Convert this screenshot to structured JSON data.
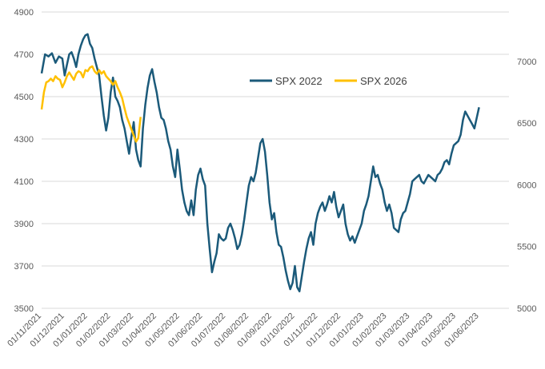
{
  "chart_data": {
    "type": "line",
    "title": "",
    "left_axis": {
      "ylim": [
        3500,
        4900
      ],
      "ticks": [
        3500,
        3700,
        3900,
        4100,
        4300,
        4500,
        4700,
        4900
      ]
    },
    "right_axis": {
      "ylim": [
        5000,
        7400
      ],
      "ticks": [
        5000,
        5500,
        6000,
        6500,
        7000
      ]
    },
    "x_axis": {
      "ticks": [
        "01/11/2021",
        "01/12/2021",
        "01/01/2022",
        "01/02/2022",
        "01/03/2022",
        "01/04/2022",
        "01/05/2022",
        "01/06/2022",
        "01/07/2022",
        "01/08/2022",
        "01/09/2022",
        "01/10/2022",
        "01/11/2022",
        "01/12/2022",
        "01/01/2023",
        "01/02/2023",
        "01/03/2023",
        "01/04/2023",
        "01/05/2023",
        "01/06/2023"
      ],
      "months_span": 20.3
    },
    "legend_position": "upper-center",
    "series": [
      {
        "name": "SPX 2022",
        "axis": "left",
        "color": "#1B5A7A",
        "points": [
          [
            0.0,
            4610
          ],
          [
            0.15,
            4700
          ],
          [
            0.3,
            4690
          ],
          [
            0.45,
            4705
          ],
          [
            0.6,
            4660
          ],
          [
            0.75,
            4690
          ],
          [
            0.9,
            4680
          ],
          [
            1.0,
            4600
          ],
          [
            1.1,
            4650
          ],
          [
            1.2,
            4700
          ],
          [
            1.3,
            4710
          ],
          [
            1.4,
            4680
          ],
          [
            1.5,
            4640
          ],
          [
            1.6,
            4700
          ],
          [
            1.7,
            4740
          ],
          [
            1.8,
            4770
          ],
          [
            1.9,
            4790
          ],
          [
            2.0,
            4795
          ],
          [
            2.1,
            4750
          ],
          [
            2.2,
            4730
          ],
          [
            2.3,
            4680
          ],
          [
            2.4,
            4640
          ],
          [
            2.5,
            4600
          ],
          [
            2.6,
            4500
          ],
          [
            2.7,
            4410
          ],
          [
            2.8,
            4340
          ],
          [
            2.9,
            4400
          ],
          [
            3.0,
            4520
          ],
          [
            3.1,
            4590
          ],
          [
            3.2,
            4500
          ],
          [
            3.3,
            4480
          ],
          [
            3.4,
            4450
          ],
          [
            3.5,
            4390
          ],
          [
            3.6,
            4350
          ],
          [
            3.7,
            4290
          ],
          [
            3.8,
            4230
          ],
          [
            3.9,
            4310
          ],
          [
            4.0,
            4380
          ],
          [
            4.1,
            4250
          ],
          [
            4.2,
            4200
          ],
          [
            4.3,
            4170
          ],
          [
            4.4,
            4350
          ],
          [
            4.5,
            4460
          ],
          [
            4.6,
            4540
          ],
          [
            4.7,
            4600
          ],
          [
            4.8,
            4630
          ],
          [
            4.9,
            4570
          ],
          [
            5.0,
            4520
          ],
          [
            5.1,
            4450
          ],
          [
            5.2,
            4400
          ],
          [
            5.3,
            4390
          ],
          [
            5.4,
            4350
          ],
          [
            5.5,
            4290
          ],
          [
            5.6,
            4250
          ],
          [
            5.7,
            4170
          ],
          [
            5.8,
            4120
          ],
          [
            5.9,
            4250
          ],
          [
            6.0,
            4160
          ],
          [
            6.1,
            4060
          ],
          [
            6.2,
            4000
          ],
          [
            6.3,
            3960
          ],
          [
            6.4,
            3940
          ],
          [
            6.5,
            4010
          ],
          [
            6.6,
            3940
          ],
          [
            6.7,
            4060
          ],
          [
            6.8,
            4130
          ],
          [
            6.9,
            4160
          ],
          [
            7.0,
            4110
          ],
          [
            7.1,
            4080
          ],
          [
            7.2,
            3900
          ],
          [
            7.3,
            3780
          ],
          [
            7.4,
            3670
          ],
          [
            7.5,
            3720
          ],
          [
            7.6,
            3760
          ],
          [
            7.7,
            3850
          ],
          [
            7.8,
            3830
          ],
          [
            7.9,
            3820
          ],
          [
            8.0,
            3830
          ],
          [
            8.1,
            3880
          ],
          [
            8.2,
            3900
          ],
          [
            8.3,
            3870
          ],
          [
            8.4,
            3830
          ],
          [
            8.5,
            3780
          ],
          [
            8.6,
            3800
          ],
          [
            8.7,
            3850
          ],
          [
            8.8,
            3920
          ],
          [
            8.9,
            4000
          ],
          [
            9.0,
            4080
          ],
          [
            9.1,
            4120
          ],
          [
            9.2,
            4100
          ],
          [
            9.3,
            4140
          ],
          [
            9.4,
            4210
          ],
          [
            9.5,
            4280
          ],
          [
            9.6,
            4300
          ],
          [
            9.7,
            4240
          ],
          [
            9.8,
            4130
          ],
          [
            9.9,
            4000
          ],
          [
            10.0,
            3920
          ],
          [
            10.1,
            3950
          ],
          [
            10.2,
            3860
          ],
          [
            10.3,
            3800
          ],
          [
            10.4,
            3790
          ],
          [
            10.5,
            3740
          ],
          [
            10.6,
            3680
          ],
          [
            10.7,
            3630
          ],
          [
            10.8,
            3590
          ],
          [
            10.9,
            3620
          ],
          [
            11.0,
            3700
          ],
          [
            11.1,
            3600
          ],
          [
            11.2,
            3580
          ],
          [
            11.3,
            3650
          ],
          [
            11.4,
            3720
          ],
          [
            11.5,
            3780
          ],
          [
            11.6,
            3830
          ],
          [
            11.7,
            3860
          ],
          [
            11.8,
            3800
          ],
          [
            11.9,
            3900
          ],
          [
            12.0,
            3950
          ],
          [
            12.1,
            3980
          ],
          [
            12.2,
            4000
          ],
          [
            12.3,
            3960
          ],
          [
            12.4,
            3990
          ],
          [
            12.5,
            4030
          ],
          [
            12.6,
            4000
          ],
          [
            12.7,
            4050
          ],
          [
            12.8,
            3980
          ],
          [
            12.9,
            3930
          ],
          [
            13.0,
            3960
          ],
          [
            13.1,
            3990
          ],
          [
            13.2,
            3900
          ],
          [
            13.3,
            3850
          ],
          [
            13.4,
            3820
          ],
          [
            13.5,
            3840
          ],
          [
            13.6,
            3810
          ],
          [
            13.7,
            3840
          ],
          [
            13.8,
            3870
          ],
          [
            13.9,
            3900
          ],
          [
            14.0,
            3960
          ],
          [
            14.1,
            3990
          ],
          [
            14.2,
            4030
          ],
          [
            14.3,
            4100
          ],
          [
            14.4,
            4170
          ],
          [
            14.5,
            4120
          ],
          [
            14.6,
            4130
          ],
          [
            14.7,
            4090
          ],
          [
            14.8,
            4060
          ],
          [
            14.9,
            4000
          ],
          [
            15.0,
            3960
          ],
          [
            15.1,
            3990
          ],
          [
            15.2,
            3950
          ],
          [
            15.3,
            3880
          ],
          [
            15.4,
            3870
          ],
          [
            15.5,
            3860
          ],
          [
            15.6,
            3920
          ],
          [
            15.7,
            3950
          ],
          [
            15.8,
            3960
          ],
          [
            15.9,
            4000
          ],
          [
            16.0,
            4040
          ],
          [
            16.1,
            4100
          ],
          [
            16.2,
            4110
          ],
          [
            16.3,
            4120
          ],
          [
            16.4,
            4130
          ],
          [
            16.5,
            4100
          ],
          [
            16.6,
            4090
          ],
          [
            16.7,
            4110
          ],
          [
            16.8,
            4130
          ],
          [
            16.9,
            4120
          ],
          [
            17.0,
            4110
          ],
          [
            17.1,
            4100
          ],
          [
            17.2,
            4130
          ],
          [
            17.3,
            4140
          ],
          [
            17.4,
            4160
          ],
          [
            17.5,
            4190
          ],
          [
            17.6,
            4200
          ],
          [
            17.7,
            4180
          ],
          [
            17.8,
            4230
          ],
          [
            17.9,
            4270
          ],
          [
            18.0,
            4280
          ],
          [
            18.1,
            4290
          ],
          [
            18.2,
            4320
          ],
          [
            18.3,
            4390
          ],
          [
            18.4,
            4430
          ],
          [
            18.5,
            4410
          ],
          [
            18.6,
            4390
          ],
          [
            18.7,
            4370
          ],
          [
            18.8,
            4350
          ],
          [
            18.9,
            4400
          ],
          [
            19.0,
            4450
          ]
        ]
      },
      {
        "name": "SPX 2026",
        "axis": "right",
        "color": "#FFC000",
        "points": [
          [
            0.0,
            6610
          ],
          [
            0.1,
            6750
          ],
          [
            0.2,
            6830
          ],
          [
            0.3,
            6840
          ],
          [
            0.4,
            6860
          ],
          [
            0.5,
            6840
          ],
          [
            0.6,
            6880
          ],
          [
            0.7,
            6860
          ],
          [
            0.8,
            6850
          ],
          [
            0.9,
            6790
          ],
          [
            1.0,
            6830
          ],
          [
            1.1,
            6880
          ],
          [
            1.2,
            6910
          ],
          [
            1.3,
            6880
          ],
          [
            1.4,
            6850
          ],
          [
            1.5,
            6900
          ],
          [
            1.6,
            6920
          ],
          [
            1.7,
            6910
          ],
          [
            1.8,
            6870
          ],
          [
            1.9,
            6930
          ],
          [
            2.0,
            6920
          ],
          [
            2.1,
            6950
          ],
          [
            2.2,
            6960
          ],
          [
            2.3,
            6920
          ],
          [
            2.4,
            6900
          ],
          [
            2.5,
            6930
          ],
          [
            2.6,
            6900
          ],
          [
            2.7,
            6920
          ],
          [
            2.8,
            6880
          ],
          [
            2.9,
            6860
          ],
          [
            3.0,
            6840
          ],
          [
            3.1,
            6810
          ],
          [
            3.2,
            6840
          ],
          [
            3.3,
            6790
          ],
          [
            3.4,
            6750
          ],
          [
            3.5,
            6700
          ],
          [
            3.6,
            6620
          ],
          [
            3.7,
            6550
          ],
          [
            3.8,
            6500
          ],
          [
            3.9,
            6450
          ],
          [
            4.0,
            6400
          ],
          [
            4.1,
            6350
          ],
          [
            4.2,
            6380
          ],
          [
            4.3,
            6550
          ]
        ]
      }
    ]
  },
  "legend": {
    "series1_label": "SPX 2022",
    "series2_label": "SPX 2026"
  }
}
